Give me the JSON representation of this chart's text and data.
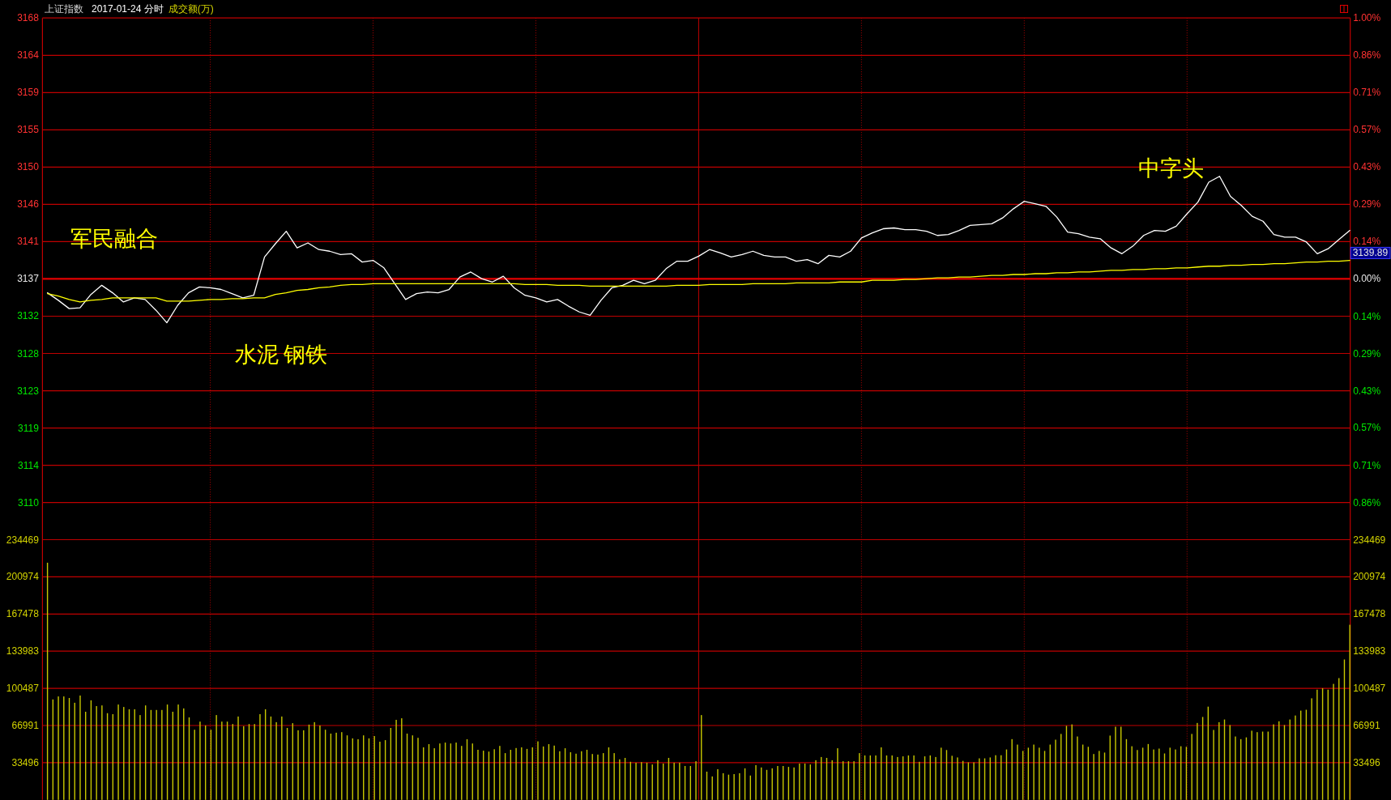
{
  "chart_data": [
    {
      "type": "line",
      "title": "上证指数",
      "subtitle": "2017-01-24 分时",
      "categories": [
        null,
        null,
        null,
        null,
        null,
        null,
        null,
        null,
        null,
        null,
        null,
        null,
        null,
        null,
        null,
        null,
        null,
        null,
        null,
        null,
        null,
        null,
        null,
        null,
        null,
        null,
        null,
        null,
        null,
        null,
        null,
        null,
        null,
        null,
        null,
        null,
        null,
        null,
        null,
        null,
        null,
        null,
        null,
        null,
        null,
        null,
        null,
        null,
        null,
        null,
        null,
        null,
        null,
        null,
        null,
        null,
        null,
        null,
        null,
        null,
        null,
        null,
        null,
        null,
        null,
        null,
        null,
        null,
        null,
        null,
        null,
        null,
        null,
        null,
        null,
        null,
        null,
        null,
        null,
        null,
        null,
        null,
        null,
        null,
        null,
        null,
        null,
        null,
        null,
        null,
        null,
        null,
        null,
        null,
        null,
        null,
        null,
        null,
        null,
        null,
        null,
        null,
        null,
        null,
        null,
        null,
        null,
        null,
        null,
        null,
        null,
        null,
        null,
        null,
        null,
        null,
        null,
        null,
        null,
        null,
        null
      ],
      "series": [
        {
          "color": "#ffffff",
          "values": [
            3135.1,
            3134.2,
            3133.2,
            3133.3,
            3134.9,
            3136.0,
            3135.1,
            3134.0,
            3134.5,
            3134.3,
            3133.0,
            3131.5,
            3133.6,
            3135.1,
            3135.8,
            3135.7,
            3135.5,
            3135.0,
            3134.5,
            3134.8,
            3139.4,
            3141.0,
            3142.5,
            3140.5,
            3141.1,
            3140.3,
            3140.1,
            3139.7,
            3139.8,
            3138.8,
            3139.0,
            3138.1,
            3136.2,
            3134.3,
            3135.0,
            3135.2,
            3135.1,
            3135.5,
            3137.0,
            3137.6,
            3136.8,
            3136.4,
            3137.1,
            3135.7,
            3134.8,
            3134.5,
            3134.0,
            3134.3,
            3133.5,
            3132.8,
            3132.4,
            3134.2,
            3135.7,
            3136.0,
            3136.6,
            3136.2,
            3136.6,
            3138.0,
            3138.9,
            3138.9,
            3139.5,
            3140.3,
            3139.9,
            3139.4,
            3139.7,
            3140.1,
            3139.6,
            3139.4,
            3139.4,
            3138.9,
            3139.1,
            3138.6,
            3139.6,
            3139.4,
            3140.1,
            3141.7,
            3142.3,
            3142.8,
            3142.9,
            3142.7,
            3142.7,
            3142.5,
            3142.0,
            3142.1,
            3142.6,
            3143.2,
            3143.3,
            3143.4,
            3144.1,
            3145.2,
            3146.1,
            3145.8,
            3145.5,
            3144.2,
            3142.4,
            3142.2,
            3141.8,
            3141.6,
            3140.5,
            3139.8,
            3140.7,
            3142.0,
            3142.6,
            3142.5,
            3143.1,
            3144.6,
            3146.0,
            3148.4,
            3149.1,
            3146.7,
            3145.6,
            3144.3,
            3143.7,
            3142.1,
            3141.8,
            3141.8,
            3141.2,
            3139.8,
            3140.4,
            3141.5,
            3142.6
          ]
        },
        {
          "color": "#ffff00",
          "values": [
            3135.0,
            3134.7,
            3134.3,
            3134.0,
            3134.2,
            3134.3,
            3134.5,
            3134.5,
            3134.5,
            3134.5,
            3134.5,
            3134.1,
            3134.1,
            3134.1,
            3134.2,
            3134.3,
            3134.3,
            3134.4,
            3134.4,
            3134.5,
            3134.5,
            3134.9,
            3135.1,
            3135.4,
            3135.5,
            3135.7,
            3135.8,
            3136.0,
            3136.1,
            3136.1,
            3136.2,
            3136.2,
            3136.2,
            3136.2,
            3136.2,
            3136.2,
            3136.2,
            3136.2,
            3136.2,
            3136.2,
            3136.2,
            3136.2,
            3136.2,
            3136.2,
            3136.1,
            3136.1,
            3136.1,
            3136.0,
            3136.0,
            3136.0,
            3135.9,
            3135.9,
            3135.9,
            3135.9,
            3135.9,
            3135.9,
            3135.9,
            3135.9,
            3136.0,
            3136.0,
            3136.0,
            3136.1,
            3136.1,
            3136.1,
            3136.1,
            3136.2,
            3136.2,
            3136.2,
            3136.2,
            3136.3,
            3136.3,
            3136.3,
            3136.3,
            3136.4,
            3136.4,
            3136.4,
            3136.6,
            3136.6,
            3136.6,
            3136.7,
            3136.7,
            3136.8,
            3136.9,
            3136.9,
            3137.0,
            3137.0,
            3137.1,
            3137.2,
            3137.2,
            3137.3,
            3137.3,
            3137.4,
            3137.4,
            3137.5,
            3137.5,
            3137.6,
            3137.6,
            3137.7,
            3137.8,
            3137.8,
            3137.9,
            3137.9,
            3138.0,
            3138.0,
            3138.1,
            3138.1,
            3138.2,
            3138.3,
            3138.3,
            3138.4,
            3138.4,
            3138.5,
            3138.5,
            3138.6,
            3138.6,
            3138.7,
            3138.8,
            3138.8,
            3138.9,
            3138.9,
            3139.0
          ]
        }
      ],
      "ylim": [
        3109.89,
        3168.14
      ],
      "yticks": [
        {
          "value": 3109.89,
          "label": "3110"
        },
        {
          "value": 3114.37,
          "label": "3114"
        },
        {
          "value": 3118.85,
          "label": "3119"
        },
        {
          "value": 3123.33,
          "label": "3123"
        },
        {
          "value": 3127.81,
          "label": "3128"
        },
        {
          "value": 3132.29,
          "label": "3132"
        },
        {
          "value": 3136.77,
          "label": "3137"
        },
        {
          "value": 3141.25,
          "label": "3141"
        },
        {
          "value": 3145.73,
          "label": "3146"
        },
        {
          "value": 3150.21,
          "label": "3150"
        },
        {
          "value": 3154.69,
          "label": "3155"
        },
        {
          "value": 3159.17,
          "label": "3159"
        },
        {
          "value": 3163.65,
          "label": "3164"
        },
        {
          "value": 3168.14,
          "label": "3168"
        }
      ],
      "y2lim": [
        -0.857,
        1.0
      ],
      "y2ticks": [
        {
          "value": -0.857,
          "label": "0.86%"
        },
        {
          "value": -0.714,
          "label": "0.71%"
        },
        {
          "value": -0.571,
          "label": "0.57%"
        },
        {
          "value": -0.429,
          "label": "0.43%"
        },
        {
          "value": -0.286,
          "label": "0.29%"
        },
        {
          "value": -0.143,
          "label": "0.14%"
        },
        {
          "value": 0,
          "label": "0.00%"
        },
        {
          "value": 0.143,
          "label": "0.14%"
        },
        {
          "value": 0.286,
          "label": "0.29%"
        },
        {
          "value": 0.429,
          "label": "0.43%"
        },
        {
          "value": 0.571,
          "label": "0.57%"
        },
        {
          "value": 0.714,
          "label": "0.71%"
        },
        {
          "value": 0.857,
          "label": "0.86%"
        },
        {
          "value": 1.0,
          "label": "1.00%"
        }
      ],
      "grid": true,
      "ref_lines": [
        {
          "axis": "y",
          "value": 3136.77,
          "color": "#e00000"
        }
      ],
      "annotations": [
        "成交额(万)",
        "军民融合",
        "水泥 钢铁",
        "中字头",
        "3139.89"
      ]
    },
    {
      "type": "bar",
      "categories": [
        null,
        null,
        null,
        null,
        null,
        null,
        null,
        null,
        null,
        null,
        null,
        null,
        null,
        null,
        null,
        null,
        null,
        null,
        null,
        null,
        null,
        null,
        null,
        null,
        null,
        null,
        null,
        null,
        null,
        null,
        null,
        null,
        null,
        null,
        null,
        null,
        null,
        null,
        null,
        null,
        null,
        null,
        null,
        null,
        null,
        null,
        null,
        null,
        null,
        null,
        null,
        null,
        null,
        null,
        null,
        null,
        null,
        null,
        null,
        null,
        null,
        null,
        null,
        null,
        null,
        null,
        null,
        null,
        null,
        null,
        null,
        null,
        null,
        null,
        null,
        null,
        null,
        null,
        null,
        null,
        null,
        null,
        null,
        null,
        null,
        null,
        null,
        null,
        null,
        null,
        null,
        null,
        null,
        null,
        null,
        null,
        null,
        null,
        null,
        null,
        null,
        null,
        null,
        null,
        null,
        null,
        null,
        null,
        null,
        null,
        null,
        null,
        null,
        null,
        null,
        null,
        null,
        null,
        null,
        null,
        null,
        null,
        null,
        null,
        null,
        null,
        null,
        null,
        null,
        null,
        null,
        null,
        null,
        null,
        null,
        null,
        null,
        null,
        null,
        null,
        null,
        null,
        null,
        null,
        null,
        null,
        null,
        null,
        null,
        null,
        null,
        null,
        null,
        null,
        null,
        null,
        null,
        null,
        null,
        null,
        null,
        null,
        null,
        null,
        null,
        null,
        null,
        null,
        null,
        null,
        null,
        null,
        null,
        null,
        null,
        null,
        null,
        null,
        null,
        null,
        null,
        null,
        null,
        null,
        null,
        null,
        null,
        null,
        null,
        null,
        null,
        null,
        null,
        null,
        null,
        null,
        null,
        null,
        null,
        null,
        null,
        null,
        null,
        null,
        null,
        null,
        null,
        null,
        null,
        null,
        null,
        null,
        null,
        null,
        null,
        null,
        null,
        null,
        null,
        null,
        null,
        null,
        null,
        null,
        null,
        null,
        null,
        null,
        null,
        null,
        null,
        null,
        null,
        null,
        null,
        null,
        null,
        null,
        null,
        null
      ],
      "values": [
        213700,
        90500,
        93200,
        93200,
        91800,
        87500,
        94000,
        79400,
        89700,
        84500,
        85100,
        78100,
        77200,
        85900,
        83700,
        81600,
        81600,
        76400,
        85100,
        81000,
        81000,
        81000,
        85900,
        79400,
        85900,
        82400,
        74300,
        63200,
        70500,
        67000,
        63200,
        76400,
        70500,
        70500,
        68300,
        75100,
        66400,
        68300,
        68300,
        77200,
        81600,
        75100,
        70000,
        75100,
        64800,
        69100,
        62700,
        62700,
        67800,
        70000,
        67000,
        63200,
        59700,
        60500,
        61000,
        58100,
        55400,
        54600,
        58100,
        55400,
        57500,
        52400,
        53800,
        64800,
        72100,
        73500,
        59700,
        58100,
        55900,
        47300,
        50200,
        46500,
        50800,
        51600,
        50800,
        51600,
        48600,
        54600,
        50800,
        45100,
        44300,
        43500,
        45600,
        48600,
        42100,
        45100,
        46700,
        47300,
        45900,
        47300,
        52700,
        48100,
        50200,
        48900,
        43800,
        46500,
        42900,
        41600,
        43800,
        45100,
        41300,
        40800,
        42100,
        47300,
        42100,
        36500,
        37800,
        34300,
        33500,
        34000,
        33500,
        31900,
        35700,
        32700,
        37800,
        33500,
        33500,
        30500,
        30500,
        34800,
        76400,
        25400,
        21100,
        27600,
        24000,
        22700,
        23200,
        24000,
        28400,
        21900,
        31300,
        29200,
        27000,
        28400,
        30500,
        30500,
        29700,
        29200,
        32700,
        32700,
        31900,
        35700,
        38600,
        37800,
        35700,
        46500,
        34800,
        34800,
        34800,
        42100,
        40000,
        40000,
        40000,
        47300,
        40000,
        40000,
        38600,
        39200,
        40000,
        40000,
        34300,
        39200,
        40000,
        38600,
        47000,
        44900,
        39700,
        38200,
        35100,
        33800,
        33800,
        37400,
        37400,
        38200,
        40200,
        40200,
        45400,
        54700,
        49800,
        44100,
        47000,
        49800,
        47000,
        44100,
        49800,
        54200,
        59400,
        66700,
        68000,
        57100,
        49800,
        47800,
        41300,
        44100,
        42600,
        57900,
        65900,
        65900,
        54700,
        48300,
        44900,
        47000,
        50300,
        45400,
        46200,
        41800,
        47000,
        45400,
        48300,
        47800,
        59400,
        69300,
        74700,
        84000,
        63000,
        70000,
        72400,
        67400,
        57100,
        54700,
        56300,
        62300,
        61000,
        61500,
        61500,
        68000,
        70800,
        67400,
        72400,
        76000,
        80400,
        81200,
        91500,
        99300,
        100600,
        99300,
        104500,
        109700,
        126500,
        157800
      ],
      "color": "#c8c800",
      "ylim": [
        0,
        267965
      ],
      "yticks": [
        33496,
        66991,
        100487,
        133983,
        167478,
        200974,
        234469
      ],
      "y2lim": [
        0,
        267965
      ],
      "y2ticks": [
        33496,
        66991,
        100487,
        133983,
        167478,
        200974,
        234469
      ],
      "grid": true
    }
  ]
}
